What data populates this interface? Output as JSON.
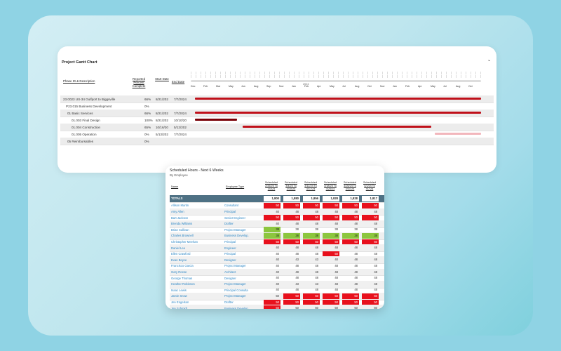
{
  "gantt": {
    "title": "Project Gantt Chart",
    "collapse_icon": "chevron-down-icon",
    "columns": {
      "phase": "Phase ID & Description",
      "percent": "Reported Percent Complete",
      "start": "Start Date",
      "end": "End Date"
    },
    "year_label": "2024",
    "months": [
      "Dec",
      "Feb",
      "Mar",
      "May",
      "Jun",
      "Aug",
      "Sep",
      "Nov",
      "Jan",
      "Feb",
      "Apr",
      "May",
      "Jul",
      "Aug",
      "Oct",
      "Nov",
      "Jan",
      "Feb",
      "Apr",
      "May",
      "Jul",
      "Aug",
      "Oct"
    ],
    "colors": {
      "bar": "#c0101a",
      "bar_dark": "#7a0007",
      "bar_light": "#f2b6bc"
    },
    "rows": [
      {
        "name": "23.0023 US-34 Gulfport to Biggsville",
        "percent": "66%",
        "start": "8/21/202",
        "end": "7/7/2024",
        "shade": true,
        "bar": {
          "from": 0.005,
          "to": 0.99,
          "style": "normal"
        }
      },
      {
        "name": "P23.015 Business Development",
        "percent": "0%",
        "start": "",
        "end": "",
        "shade": false,
        "bar": null
      },
      {
        "name": "01 Basic Services",
        "percent": "66%",
        "start": "8/21/202",
        "end": "7/7/2024",
        "shade": true,
        "bar": {
          "from": 0.005,
          "to": 0.99,
          "style": "normal"
        }
      },
      {
        "name": "01.003 Final Design",
        "percent": "100%",
        "start": "8/21/202",
        "end": "10/10/20",
        "shade": false,
        "bar": {
          "from": 0.005,
          "to": 0.15,
          "style": "dark"
        }
      },
      {
        "name": "01.004 Construction",
        "percent": "65%",
        "start": "10/16/20",
        "end": "5/12/202",
        "shade": true,
        "bar": {
          "from": 0.17,
          "to": 0.82,
          "style": "normal"
        }
      },
      {
        "name": "01.005 Operation",
        "percent": "0%",
        "start": "5/13/202",
        "end": "7/7/2024",
        "shade": false,
        "bar": {
          "from": 0.83,
          "to": 0.99,
          "style": "light"
        }
      },
      {
        "name": "05 Reimbursables",
        "percent": "0%",
        "start": "",
        "end": "",
        "shade": true,
        "bar": null
      }
    ]
  },
  "hours": {
    "title": "Scheduled Hours - Next 6 Weeks",
    "subtitle": "By Employee",
    "col_name": "Name",
    "col_type": "Employee Type",
    "weeks": [
      "Scheduled 2/26/24 To 3/3/24",
      "Scheduled 3/4/24 To 3/10/24",
      "Scheduled 3/11/24 To 3/17/24",
      "Scheduled 3/18/24 To 3/24/24",
      "Scheduled 3/25/24 To 3/31/24",
      "Scheduled 4/1/24 To 4/7/24"
    ],
    "colors": {
      "over": "#e8101c",
      "under": "#8cc63e",
      "total_bg": "#4e7184"
    },
    "total": {
      "name": "TOTALS",
      "values": [
        "1,800",
        "1,880",
        "1,856",
        "1,828",
        "1,828",
        "1,817"
      ]
    },
    "rows": [
      {
        "name": "Allison Martin",
        "type": "Consultant",
        "values": [
          "50",
          "50",
          "50",
          "50",
          "50",
          "50"
        ],
        "status": [
          "over",
          "over",
          "over",
          "over",
          "over",
          "over"
        ]
      },
      {
        "name": "Amy Allen",
        "type": "Principal",
        "values": [
          "40",
          "48",
          "48",
          "48",
          "48",
          "48"
        ],
        "status": [
          "",
          "",
          "",
          "",
          "",
          ""
        ]
      },
      {
        "name": "Bart Jackson",
        "type": "Senior Engineer",
        "values": [
          "50",
          "50",
          "50",
          "50",
          "50",
          "50"
        ],
        "status": [
          "over",
          "over",
          "over",
          "over",
          "over",
          "over"
        ]
      },
      {
        "name": "Brenda Williams",
        "type": "Drafter",
        "values": [
          "40",
          "48",
          "48",
          "48",
          "48",
          "48"
        ],
        "status": [
          "",
          "",
          "",
          "",
          "",
          ""
        ]
      },
      {
        "name": "Brian Sullivan",
        "type": "Project Manager",
        "values": [
          "38",
          "38",
          "38",
          "38",
          "38",
          "38"
        ],
        "status": [
          "under",
          "",
          "",
          "",
          "",
          ""
        ]
      },
      {
        "name": "Charles Brownell",
        "type": "Business Develop.",
        "values": [
          "38",
          "38",
          "38",
          "38",
          "38",
          "38"
        ],
        "status": [
          "under",
          "under",
          "under",
          "under",
          "under",
          "under"
        ]
      },
      {
        "name": "Christopher Meehan",
        "type": "Principal",
        "values": [
          "50",
          "50",
          "50",
          "50",
          "50",
          "50"
        ],
        "status": [
          "over",
          "over",
          "over",
          "over",
          "over",
          "over"
        ]
      },
      {
        "name": "Daniel Lee",
        "type": "Engineer",
        "values": [
          "40",
          "48",
          "48",
          "48",
          "48",
          "48"
        ],
        "status": [
          "",
          "",
          "",
          "",
          "",
          ""
        ]
      },
      {
        "name": "Ellen Crawford",
        "type": "Principal",
        "values": [
          "40",
          "48",
          "48",
          "50",
          "48",
          "48"
        ],
        "status": [
          "",
          "",
          "",
          "over",
          "",
          ""
        ]
      },
      {
        "name": "Evan Boyce",
        "type": "Designer",
        "values": [
          "40",
          "43",
          "43",
          "40",
          "48",
          "48"
        ],
        "status": [
          "",
          "",
          "",
          "",
          "",
          ""
        ]
      },
      {
        "name": "Francisco Garcia",
        "type": "Project Manager",
        "values": [
          "40",
          "48",
          "48",
          "48",
          "48",
          "48"
        ],
        "status": [
          "",
          "",
          "",
          "",
          "",
          ""
        ]
      },
      {
        "name": "Gary Reese",
        "type": "Architect",
        "values": [
          "40",
          "48",
          "48",
          "48",
          "48",
          "48"
        ],
        "status": [
          "",
          "",
          "",
          "",
          "",
          ""
        ]
      },
      {
        "name": "George Thomas",
        "type": "Designer",
        "values": [
          "40",
          "48",
          "48",
          "48",
          "48",
          "48"
        ],
        "status": [
          "",
          "",
          "",
          "",
          "",
          ""
        ]
      },
      {
        "name": "Heather Robinson",
        "type": "Project Manager",
        "values": [
          "40",
          "43",
          "43",
          "48",
          "48",
          "48"
        ],
        "status": [
          "",
          "",
          "",
          "",
          "",
          ""
        ]
      },
      {
        "name": "Isaac Lewis",
        "type": "Principal Consulta",
        "values": [
          "40",
          "48",
          "48",
          "48",
          "48",
          "48"
        ],
        "status": [
          "",
          "",
          "",
          "",
          "",
          ""
        ]
      },
      {
        "name": "Jamie Snow",
        "type": "Project Manager",
        "values": [
          "50",
          "50",
          "50",
          "50",
          "50",
          "50"
        ],
        "status": [
          "",
          "over",
          "over",
          "over",
          "over",
          "over"
        ]
      },
      {
        "name": "Jen Engelson",
        "type": "Drafter",
        "values": [
          "50",
          "50",
          "50",
          "50",
          "50",
          "50"
        ],
        "status": [
          "over",
          "over",
          "over",
          "over",
          "over",
          "over"
        ]
      },
      {
        "name": "Jen Schmidt",
        "type": "Business Develop.",
        "values": [
          "50",
          "50",
          "50",
          "50",
          "50",
          "50"
        ],
        "status": [
          "over",
          "",
          "",
          "",
          "",
          ""
        ]
      }
    ]
  }
}
